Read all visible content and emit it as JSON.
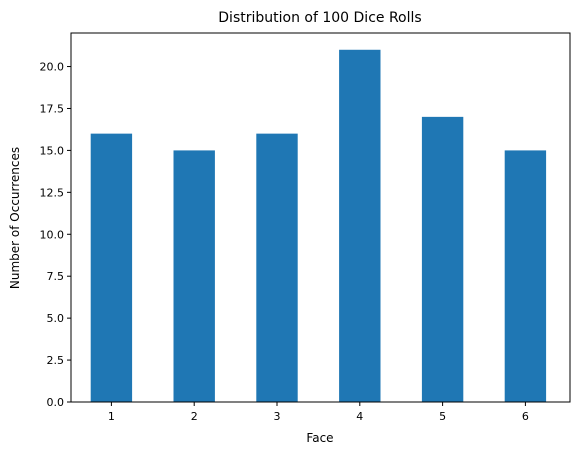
{
  "chart_data": {
    "type": "bar",
    "title": "Distribution of 100 Dice Rolls",
    "xlabel": "Face",
    "ylabel": "Number of Occurrences",
    "categories": [
      "1",
      "2",
      "3",
      "4",
      "5",
      "6"
    ],
    "values": [
      16,
      15,
      16,
      21,
      17,
      15
    ],
    "ylim": [
      0,
      22
    ],
    "yticks": [
      0.0,
      2.5,
      5.0,
      7.5,
      10.0,
      12.5,
      15.0,
      17.5,
      20.0
    ],
    "ytick_labels": [
      "0.0",
      "2.5",
      "5.0",
      "7.5",
      "10.0",
      "12.5",
      "15.0",
      "17.5",
      "20.0"
    ],
    "bar_color": "#1f77b4",
    "grid": false,
    "legend": false
  }
}
